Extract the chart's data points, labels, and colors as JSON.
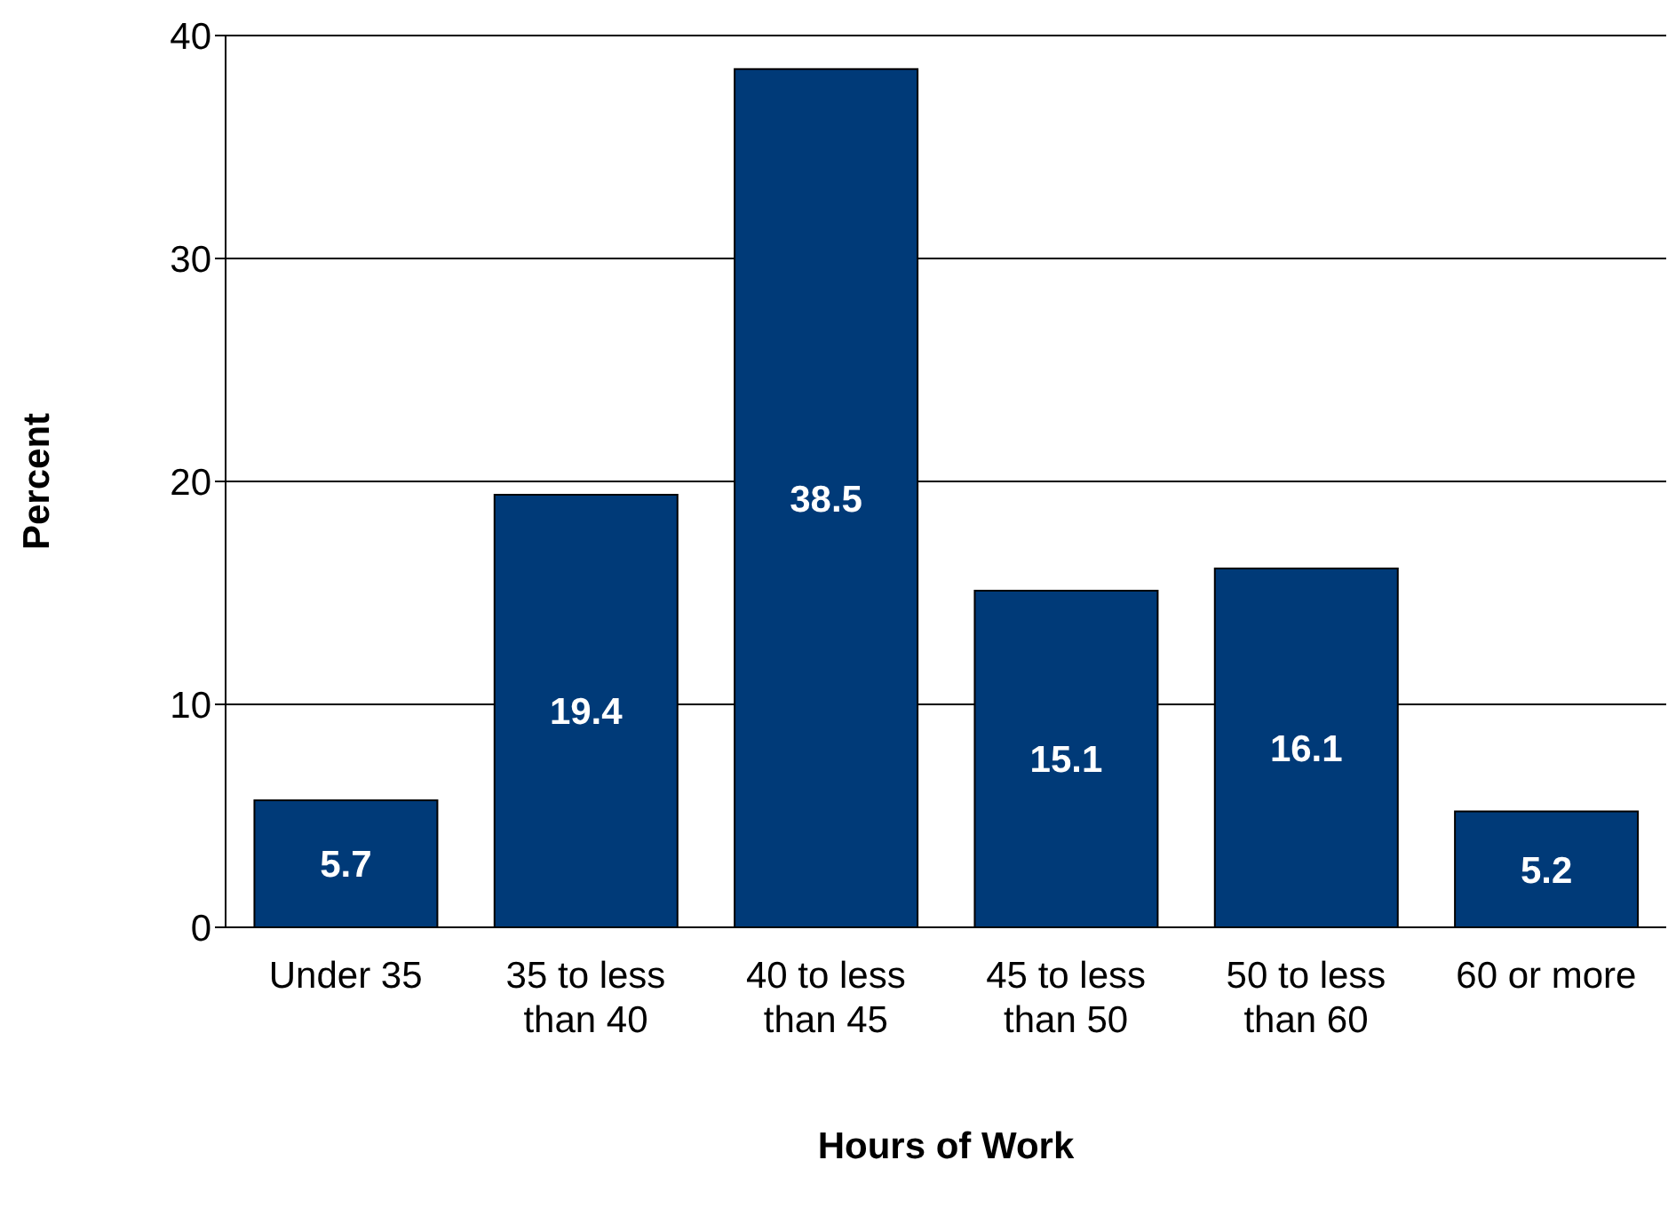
{
  "chart_data": {
    "type": "bar",
    "xlabel": "Hours of Work",
    "ylabel": "Percent",
    "categories": [
      "Under 35",
      "35 to less than 40",
      "40 to less than 45",
      "45 to less than 50",
      "50 to less than 60",
      "60 or more"
    ],
    "values": [
      5.7,
      19.4,
      38.5,
      15.1,
      16.1,
      5.2
    ],
    "color": "#003a78",
    "ylim": [
      0,
      40
    ],
    "yticks": [
      0,
      10,
      20,
      30,
      40
    ],
    "grid": "y",
    "data_labels": true
  }
}
